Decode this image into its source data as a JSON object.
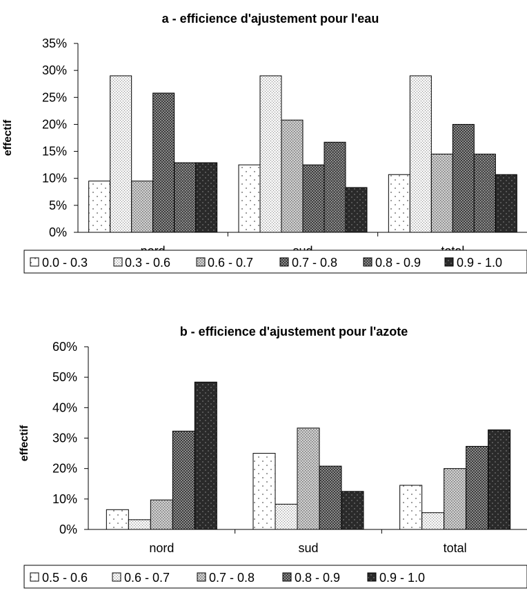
{
  "chart_data": [
    {
      "type": "bar",
      "title": "a - efficience d'ajustement pour l'eau",
      "ylabel": "effectif",
      "xlabel": "",
      "ylim": [
        0,
        35
      ],
      "yticks": [
        "0%",
        "5%",
        "10%",
        "15%",
        "20%",
        "25%",
        "30%",
        "35%"
      ],
      "ytick_values": [
        0,
        5,
        10,
        15,
        20,
        25,
        30,
        35
      ],
      "categories": [
        "nord",
        "sud",
        "total"
      ],
      "grid": false,
      "legend_position": "bottom",
      "series": [
        {
          "name": "0.0 - 0.3",
          "values": [
            9.5,
            12.5,
            10.7
          ],
          "pattern": "sparse-dots"
        },
        {
          "name": "0.3 - 0.6",
          "values": [
            29.0,
            29.0,
            29.0
          ],
          "pattern": "fine-dots"
        },
        {
          "name": "0.6 - 0.7",
          "values": [
            9.5,
            20.8,
            14.5
          ],
          "pattern": "medium-dots"
        },
        {
          "name": "0.7 - 0.8",
          "values": [
            25.8,
            12.5,
            20.0
          ],
          "pattern": "dark-dots"
        },
        {
          "name": "0.8 - 0.9",
          "values": [
            12.9,
            16.7,
            14.5
          ],
          "pattern": "darker-dots"
        },
        {
          "name": "0.9 - 1.0",
          "values": [
            12.9,
            8.3,
            10.7
          ],
          "pattern": "darkest"
        }
      ]
    },
    {
      "type": "bar",
      "title": "b - efficience d'ajustement pour l'azote",
      "ylabel": "effectif",
      "xlabel": "",
      "ylim": [
        0,
        60
      ],
      "yticks": [
        "0%",
        "10%",
        "20%",
        "30%",
        "40%",
        "50%",
        "60%"
      ],
      "ytick_values": [
        0,
        10,
        20,
        30,
        40,
        50,
        60
      ],
      "categories": [
        "nord",
        "sud",
        "total"
      ],
      "grid": false,
      "legend_position": "bottom",
      "series": [
        {
          "name": "0.5 - 0.6",
          "values": [
            6.5,
            25.0,
            14.5
          ],
          "pattern": "sparse-dots"
        },
        {
          "name": "0.6 - 0.7",
          "values": [
            3.2,
            8.3,
            5.5
          ],
          "pattern": "fine-dots"
        },
        {
          "name": "0.7 - 0.8",
          "values": [
            9.7,
            33.3,
            20.0
          ],
          "pattern": "medium-dots"
        },
        {
          "name": "0.8 - 0.9",
          "values": [
            32.3,
            20.8,
            27.3
          ],
          "pattern": "dark-dots"
        },
        {
          "name": "0.9 - 1.0",
          "values": [
            48.4,
            12.5,
            32.7
          ],
          "pattern": "darkest"
        }
      ]
    }
  ]
}
